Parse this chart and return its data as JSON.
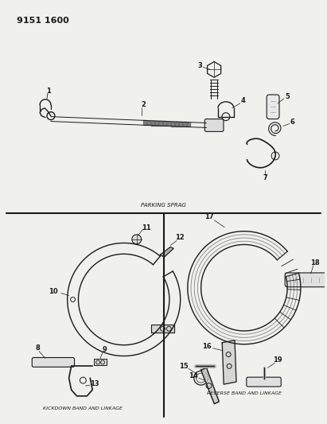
{
  "title": "9151 1600",
  "bg_color": "#f0f0ec",
  "text_color": "#1a1a1a",
  "fig_width": 4.11,
  "fig_height": 5.33,
  "dpi": 100,
  "parking_sprag_label": "PARKING SPRAG",
  "kickdown_label": "KICKDOWN BAND AND LINKAGE",
  "reverse_label": "REVERSE BAND AND LINKAGE"
}
